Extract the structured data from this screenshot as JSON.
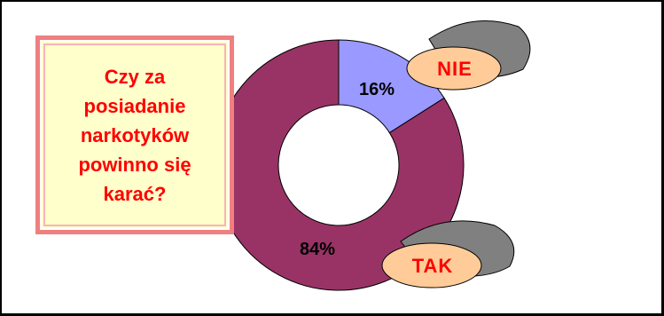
{
  "chart_data": {
    "type": "pie",
    "subtype": "donut",
    "title": "Czy za posiadanie narkotyków powinno się karać?",
    "categories": [
      "NIE",
      "TAK"
    ],
    "values": [
      16,
      84
    ],
    "data_labels": [
      "16%",
      "84%"
    ],
    "colors": {
      "NIE": "#9999ff",
      "TAK": "#993366"
    },
    "legend": "none"
  },
  "style": {
    "title_color": "#ff0000",
    "title_box_fill": "#ffffcc",
    "title_box_border": "#f07f7f",
    "bubble_fill": "#ffcc99",
    "bubble_shadow": "#808080",
    "bubble_text": "#ff0000"
  }
}
